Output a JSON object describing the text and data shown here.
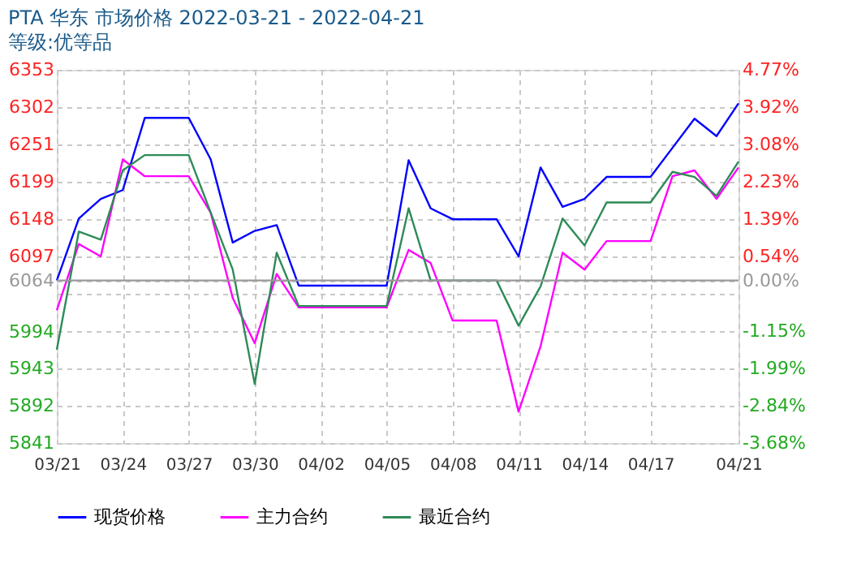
{
  "chart_data": {
    "type": "line",
    "title": "PTA 华东 市场价格 2022-03-21 - 2022-04-21",
    "subtitle": "等级:优等品",
    "x": [
      "2022-03-21",
      "2022-03-22",
      "2022-03-23",
      "2022-03-24",
      "2022-03-25",
      "2022-03-27",
      "2022-03-28",
      "2022-03-29",
      "2022-03-30",
      "2022-03-31",
      "2022-04-01",
      "2022-04-05",
      "2022-04-06",
      "2022-04-07",
      "2022-04-08",
      "2022-04-10",
      "2022-04-11",
      "2022-04-12",
      "2022-04-13",
      "2022-04-14",
      "2022-04-15",
      "2022-04-17",
      "2022-04-18",
      "2022-04-19",
      "2022-04-20",
      "2022-04-21"
    ],
    "series": [
      {
        "name": "现货价格",
        "color": "#0000ff",
        "values": [
          6064,
          6149,
          6176,
          6188,
          6287,
          6287,
          6230,
          6116,
          6132,
          6140,
          6057,
          6057,
          6229,
          6163,
          6148,
          6148,
          6097,
          6219,
          6165,
          6176,
          6206,
          6206,
          6246,
          6286,
          6262,
          6307
        ]
      },
      {
        "name": "主力合约",
        "color": "#ff00ff",
        "values": [
          6023,
          6114,
          6097,
          6230,
          6207,
          6207,
          6157,
          6040,
          5978,
          6073,
          6027,
          6027,
          6106,
          6088,
          6009,
          6009,
          5884,
          5974,
          6102,
          6079,
          6118,
          6118,
          6207,
          6215,
          6176,
          6219
        ]
      },
      {
        "name": "最近合约",
        "color": "#2e8b57",
        "values": [
          5969,
          6131,
          6120,
          6215,
          6236,
          6236,
          6157,
          6079,
          5922,
          6102,
          6029,
          6029,
          6163,
          6064,
          6064,
          6064,
          6002,
          6056,
          6149,
          6112,
          6171,
          6171,
          6213,
          6206,
          6180,
          6227
        ]
      }
    ],
    "xlim": [
      "2022-03-21",
      "2022-04-21"
    ],
    "xticks": [
      {
        "value": "2022-03-21",
        "label": "03/21"
      },
      {
        "value": "2022-03-24",
        "label": "03/24"
      },
      {
        "value": "2022-03-27",
        "label": "03/27"
      },
      {
        "value": "2022-03-30",
        "label": "03/30"
      },
      {
        "value": "2022-04-02",
        "label": "04/02"
      },
      {
        "value": "2022-04-05",
        "label": "04/05"
      },
      {
        "value": "2022-04-08",
        "label": "04/08"
      },
      {
        "value": "2022-04-11",
        "label": "04/11"
      },
      {
        "value": "2022-04-14",
        "label": "04/14"
      },
      {
        "value": "2022-04-17",
        "label": "04/17"
      },
      {
        "value": "2022-04-21",
        "label": "04/21"
      }
    ],
    "ylim": [
      5841,
      6353
    ],
    "yticks": [
      5841,
      5892,
      5943,
      5994,
      {
        "value": 6046,
        "label": null
      },
      6064,
      6097,
      6148,
      6199,
      6251,
      6302,
      6353
    ],
    "y2lim": [
      -3.68,
      4.77
    ],
    "y2ticks": [
      {
        "value": -3.68,
        "label": "-3.68%"
      },
      {
        "value": -2.84,
        "label": "-2.84%"
      },
      {
        "value": -1.99,
        "label": "-1.99%"
      },
      {
        "value": -1.15,
        "label": "-1.15%"
      },
      {
        "value": 0,
        "label": "0.00%"
      },
      {
        "value": 0.54,
        "label": "0.54%"
      },
      {
        "value": 1.39,
        "label": "1.39%"
      },
      {
        "value": 2.23,
        "label": "2.23%"
      },
      {
        "value": 3.08,
        "label": "3.08%"
      },
      {
        "value": 3.92,
        "label": "3.92%"
      },
      {
        "value": 4.77,
        "label": "4.77%"
      }
    ],
    "ref_lines": [
      {
        "axis": "y",
        "value": 6064,
        "color": "#999999",
        "line_style": "solid"
      }
    ],
    "grid": true,
    "legend": "bottom",
    "marker": "none",
    "line_style": "solid"
  }
}
